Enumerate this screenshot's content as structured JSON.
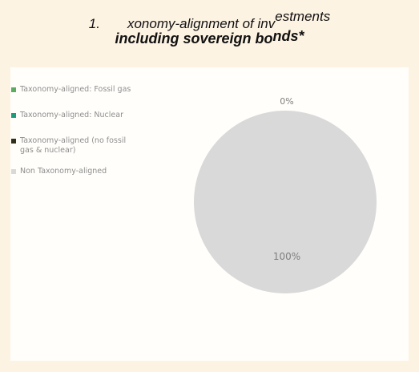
{
  "title": {
    "number": "1.",
    "part1": "xonomy-alignment of inv",
    "part1_sup": "estments",
    "part2_main": "including sovereign bo",
    "part2_tail": "nds*"
  },
  "colors": {
    "page_bg": "#fdf3e3",
    "chart_bg": "#fffefb",
    "fossil_gas": "#5cab62",
    "nuclear": "#1d9b7b",
    "no_fossil_nuclear": "#2f2f1c",
    "non_aligned": "#d9d9d9"
  },
  "chart_data": {
    "type": "pie",
    "legend_position": "left",
    "slices": [
      {
        "label": "Taxonomy-aligned: Fossil gas",
        "value": 0,
        "color": "#5cab62",
        "data_label": ""
      },
      {
        "label": "Taxonomy-aligned: Nuclear",
        "value": 0,
        "color": "#1d9b7b",
        "data_label": ""
      },
      {
        "label": "Taxonomy-aligned (no fossil gas & nuclear)",
        "value": 0,
        "color": "#2f2f1c",
        "data_label": "0%"
      },
      {
        "label": "Non Taxonomy-aligned",
        "value": 100,
        "color": "#d9d9d9",
        "data_label": "100%"
      }
    ]
  }
}
